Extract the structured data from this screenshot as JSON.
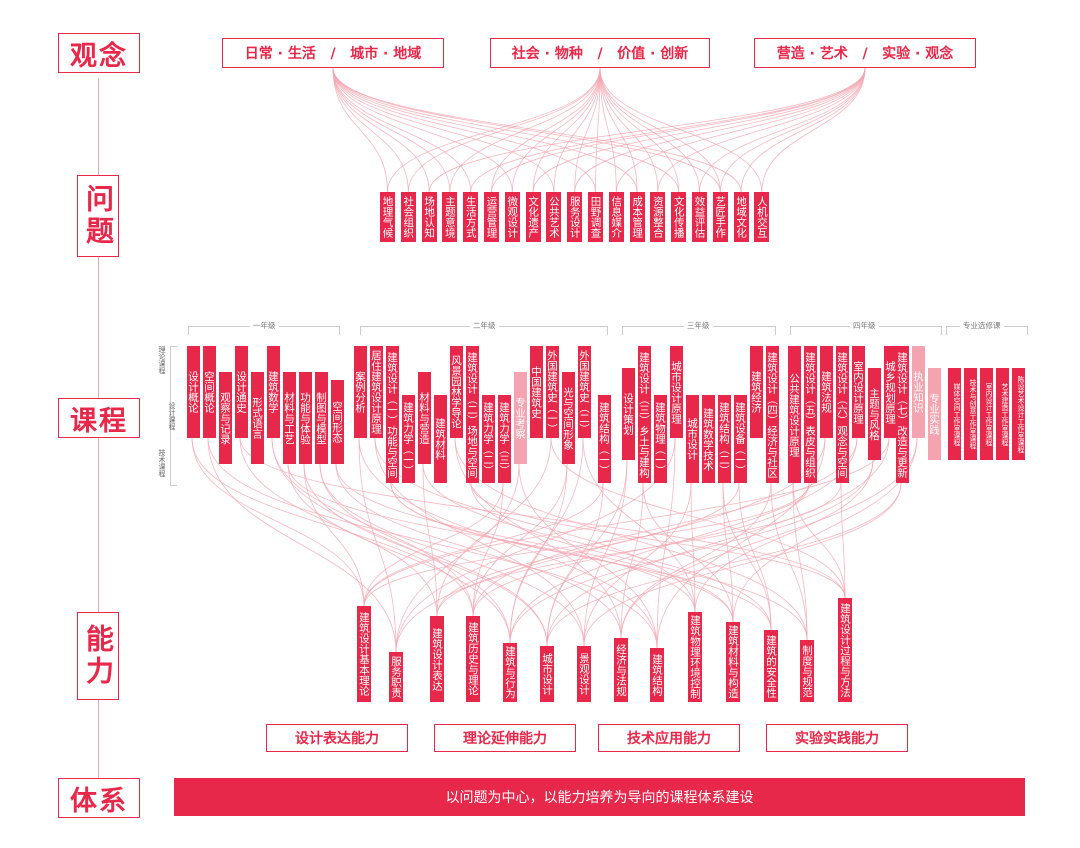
{
  "sidebar": {
    "concept": "观念",
    "problem": "问题",
    "course": "课程",
    "ability": "能力",
    "system": "体系"
  },
  "concepts": [
    "日常 · 生活   /   城市 · 地域",
    "社会 · 物种   /   价值 · 创新",
    "营造 · 艺术   /   实验 · 观念"
  ],
  "problems": [
    "地理气候",
    "社会组织",
    "场地认知",
    "主题意境",
    "生活方式",
    "运营管理",
    "微观设计",
    "文化遗产",
    "公共艺术",
    "服务设计",
    "田野调查",
    "信息媒介",
    "成本管理",
    "资源整合",
    "文化传播",
    "效益评估",
    "艺匠手作",
    "地域文化",
    "人机交互"
  ],
  "year_labels": [
    "一年级",
    "二年级",
    "三年级",
    "四年级",
    "专业选修课"
  ],
  "course_categories": [
    "理论课程",
    "设计课程",
    "技术课程"
  ],
  "courses": [
    "设计概论",
    "空间概论",
    "观察与记录",
    "设计通史",
    "形式语言",
    "建筑数学",
    "材料与工艺",
    "功能与体验",
    "制图与模型",
    "空间形态",
    "案例分析",
    "居住建筑设计原理",
    "建筑设计（一）功能与空间",
    "建筑力学（一）",
    "材料与营造",
    "建筑材料",
    "风景园林学导论",
    "建筑设计（二）场地与空间",
    "建筑力学（二）",
    "建筑力学（三）",
    "专业考察",
    "中国建筑史",
    "外国建筑史（一）",
    "光与空间形象",
    "外国建筑史（二）",
    "建筑结构（一）",
    "设计策划",
    "建筑设计（三）乡土与建构",
    "建筑物理（一）",
    "城市设计原理",
    "城市设计",
    "建筑数学技术",
    "建筑结构（二）",
    "建筑设备（一）",
    "建筑经济",
    "建筑设计（四）经济与社区",
    "公共建筑设计原理",
    "建筑设计（五）表皮与组织",
    "建筑法规",
    "建筑设计（六）观念与空间",
    "室内设计原理",
    "主题与风格",
    "城乡规划原理",
    "建筑设计（七）改造与更新",
    "执业知识",
    "专业实践",
    "媒体空间工作室课程",
    "技术与创意工作室课程",
    "室内设计工作室课程",
    "艺术建造工作室课程",
    "陈设艺术设计工作室课程"
  ],
  "abilities": [
    "建筑设计基本理论",
    "服务职责",
    "建筑设计表达",
    "建筑历史与理论",
    "建筑与行为",
    "城市设计",
    "景观设计",
    "经济与法规",
    "建筑结构",
    "建筑物理环境控制",
    "建筑材料与构造",
    "建筑的安全性",
    "制度与规范",
    "建筑设计过程与方法"
  ],
  "ability_groups": [
    "设计表达能力",
    "理论延伸能力",
    "技术应用能力",
    "实验实践能力"
  ],
  "banner": "以问题为中心，以能力培养为导向的课程体系建设",
  "colors": {
    "accent": "#e8284a",
    "accent_light": "#f4a3b0",
    "line": "#f2a6b2"
  }
}
